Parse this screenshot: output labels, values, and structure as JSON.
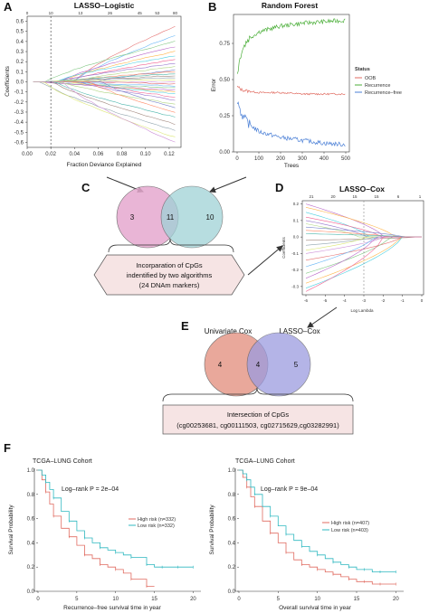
{
  "panels": {
    "a": {
      "letter": "A",
      "title": "LASSO–Logistic",
      "xlabel": "Fraction Deviance Explained",
      "ylabel": "Coefficients"
    },
    "b": {
      "letter": "B",
      "title": "Random Forest",
      "xlabel": "Trees",
      "ylabel": "Error"
    },
    "c": {
      "letter": "C"
    },
    "d": {
      "letter": "D",
      "title": "LASSO–Cox",
      "xlabel": "Log Lambda",
      "ylabel": "Coefficients"
    },
    "e": {
      "letter": "E"
    },
    "f": {
      "letter": "F"
    }
  },
  "venn_c": {
    "left": "3",
    "center": "11",
    "right": "10",
    "colors": {
      "left": "#e6a9cf",
      "right": "#9fd2d6"
    }
  },
  "box_c": {
    "line1": "Incorparation of CpGs",
    "line2": "indentified by two algorithms",
    "line3": "(24 DNAm markers)"
  },
  "venn_e": {
    "left_label": "Univariate Cox",
    "right_label": "LASSO–Cox",
    "left": "4",
    "center": "4",
    "right": "5",
    "colors": {
      "left": "#e69a8a",
      "right": "#9b9be0"
    }
  },
  "box_e": {
    "line1": "Intersection of CpGs",
    "line2": "(cg00253681, cg00111503, cg02715629,cg03282991)"
  },
  "colors": {
    "oob": "#e06b60",
    "recurrence": "#4caf3a",
    "recurrence_free": "#4a7fd6",
    "high_risk": "#e06b60",
    "low_risk": "#2fb8c0",
    "box_fill": "#f6e4e4"
  },
  "chart_data": [
    {
      "type": "line",
      "name": "LASSO-Logistic",
      "title": "LASSO–Logistic",
      "xlabel": "Fraction Deviance Explained",
      "ylabel": "Coefficients",
      "xlim": [
        0,
        0.13
      ],
      "ylim": [
        -0.65,
        0.65
      ],
      "xticks": [
        "0.00",
        "0.02",
        "0.04",
        "0.06",
        "0.08",
        "0.10",
        "0.12"
      ],
      "yticks": [
        "-0.6",
        "-0.5",
        "-0.4",
        "-0.3",
        "-0.2",
        "-0.1",
        "0.0",
        "0.1",
        "0.2",
        "0.3",
        "0.4",
        "0.5",
        "0.6"
      ],
      "top_ticks": [
        "0",
        "10",
        "13",
        "26",
        "45",
        "53",
        "80"
      ],
      "vline_x": 0.02,
      "end_values": [
        0.55,
        0.46,
        0.4,
        0.35,
        0.3,
        0.26,
        0.22,
        0.18,
        0.15,
        0.12,
        0.1,
        0.08,
        0.06,
        0.04,
        0.02,
        0.0,
        -0.02,
        -0.04,
        -0.06,
        -0.08,
        -0.1,
        -0.12,
        -0.15,
        -0.18,
        -0.22,
        -0.26,
        -0.3,
        -0.35,
        -0.42,
        -0.48,
        -0.55,
        -0.6
      ]
    },
    {
      "type": "line",
      "name": "Random Forest",
      "title": "Random Forest",
      "xlabel": "Trees",
      "ylabel": "Error",
      "xlim": [
        0,
        500
      ],
      "ylim": [
        0,
        0.95
      ],
      "xticks": [
        "0",
        "100",
        "200",
        "300",
        "400",
        "500"
      ],
      "yticks": [
        "0.00",
        "0.25",
        "0.50",
        "0.75"
      ],
      "legend_title": "Status",
      "series": [
        {
          "name": "OOB",
          "x": [
            1,
            20,
            50,
            100,
            200,
            300,
            400,
            500
          ],
          "y": [
            0.45,
            0.43,
            0.42,
            0.41,
            0.41,
            0.4,
            0.4,
            0.4
          ]
        },
        {
          "name": "Recurrence",
          "x": [
            1,
            20,
            50,
            100,
            200,
            300,
            400,
            500
          ],
          "y": [
            0.55,
            0.7,
            0.78,
            0.83,
            0.87,
            0.89,
            0.9,
            0.91
          ]
        },
        {
          "name": "Recurrence–free",
          "x": [
            1,
            20,
            50,
            100,
            200,
            300,
            400,
            500
          ],
          "y": [
            0.36,
            0.26,
            0.2,
            0.14,
            0.1,
            0.08,
            0.06,
            0.05
          ]
        }
      ]
    },
    {
      "type": "line",
      "name": "LASSO-Cox",
      "title": "LASSO–Cox",
      "xlabel": "Log Lambda",
      "ylabel": "Coefficients",
      "xlim": [
        -6,
        0
      ],
      "ylim": [
        -0.35,
        0.22
      ],
      "xticks": [
        "-6",
        "-5",
        "-4",
        "-3",
        "-2",
        "-1",
        "0"
      ],
      "yticks": [
        "-0.3",
        "-0.2",
        "-0.1",
        "0.0",
        "0.1",
        "0.2"
      ],
      "top_ticks": [
        "21",
        "20",
        "15",
        "15",
        "6",
        "1"
      ],
      "vline_x": -3,
      "start_values": [
        0.2,
        0.18,
        0.15,
        0.12,
        0.1,
        0.08,
        0.06,
        0.04,
        0.02,
        -0.02,
        -0.05,
        -0.08,
        -0.1,
        -0.14,
        -0.18,
        -0.22,
        -0.25,
        -0.28,
        -0.31,
        -0.33
      ]
    },
    {
      "type": "line",
      "name": "KM recurrence-free",
      "title": "TCGA–LUNG Cohort",
      "annotation": "Log–rank P = 2e–04",
      "xlabel": "Recurrence–free survival time in year",
      "ylabel": "Survival  Probability",
      "xlim": [
        0,
        21
      ],
      "ylim": [
        0,
        1
      ],
      "xticks": [
        "0",
        "5",
        "10",
        "15",
        "20"
      ],
      "yticks": [
        "0.0",
        "0.2",
        "0.4",
        "0.6",
        "0.8",
        "1.0"
      ],
      "series": [
        {
          "name": "High risk (n=332)",
          "x": [
            0,
            0.5,
            1,
            1.5,
            2,
            3,
            4,
            5,
            6,
            7,
            8,
            9,
            10,
            11,
            12,
            13,
            14,
            15
          ],
          "y": [
            1,
            0.92,
            0.82,
            0.72,
            0.62,
            0.52,
            0.45,
            0.38,
            0.3,
            0.27,
            0.22,
            0.2,
            0.18,
            0.15,
            0.1,
            0.1,
            0.04,
            0.04
          ]
        },
        {
          "name": "Low risk (n=332)",
          "x": [
            0,
            0.5,
            1,
            1.5,
            2,
            3,
            4,
            5,
            6,
            7,
            8,
            9,
            10,
            11,
            12,
            13,
            14,
            15,
            16,
            17,
            18,
            19,
            20
          ],
          "y": [
            1,
            0.96,
            0.9,
            0.84,
            0.77,
            0.66,
            0.58,
            0.5,
            0.44,
            0.4,
            0.36,
            0.34,
            0.32,
            0.3,
            0.28,
            0.28,
            0.22,
            0.2,
            0.2,
            0.2,
            0.2,
            0.2,
            0.2
          ]
        }
      ]
    },
    {
      "type": "line",
      "name": "KM overall",
      "title": "TCGA–LUNG Cohort",
      "annotation": "Log–rank P = 9e–04",
      "xlabel": "Overall survival time in year",
      "ylabel": "Survival  Probability",
      "xlim": [
        0,
        21
      ],
      "ylim": [
        0,
        1
      ],
      "xticks": [
        "0",
        "5",
        "10",
        "15",
        "20"
      ],
      "yticks": [
        "0.0",
        "0.2",
        "0.4",
        "0.6",
        "0.8",
        "1.0"
      ],
      "series": [
        {
          "name": "High risk (n=407)",
          "x": [
            0,
            0.5,
            1,
            1.5,
            2,
            3,
            4,
            5,
            6,
            7,
            8,
            9,
            10,
            11,
            12,
            13,
            14,
            15,
            16,
            17,
            18,
            19,
            20
          ],
          "y": [
            1,
            0.94,
            0.86,
            0.78,
            0.7,
            0.58,
            0.48,
            0.4,
            0.32,
            0.26,
            0.22,
            0.2,
            0.18,
            0.16,
            0.14,
            0.12,
            0.1,
            0.08,
            0.08,
            0.06,
            0.06,
            0.06,
            0.06
          ]
        },
        {
          "name": "Low risk (n=403)",
          "x": [
            0,
            0.5,
            1,
            1.5,
            2,
            3,
            4,
            5,
            6,
            7,
            8,
            9,
            10,
            11,
            12,
            13,
            14,
            15,
            16,
            17,
            18,
            19,
            20
          ],
          "y": [
            1,
            0.97,
            0.92,
            0.86,
            0.8,
            0.7,
            0.62,
            0.54,
            0.47,
            0.42,
            0.37,
            0.33,
            0.3,
            0.27,
            0.24,
            0.22,
            0.2,
            0.18,
            0.18,
            0.16,
            0.16,
            0.16,
            0.16
          ]
        }
      ]
    }
  ]
}
